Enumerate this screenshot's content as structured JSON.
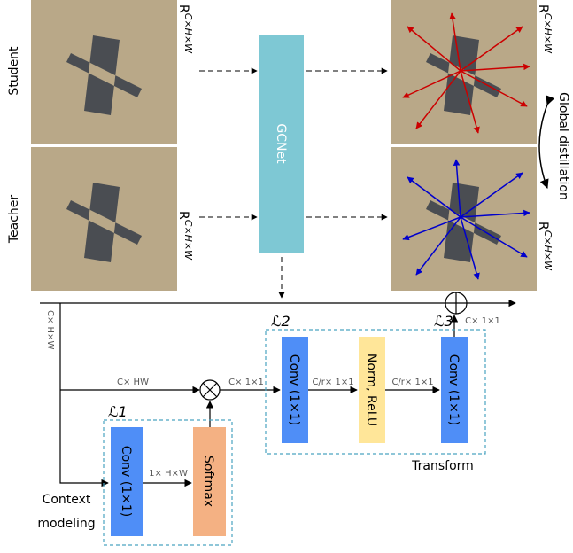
{
  "labels": {
    "student": "Student",
    "teacher": "Teacher",
    "gcnet": "GCNet",
    "global_distillation": "Global distillation",
    "context_modeling": [
      "Context",
      "modeling"
    ],
    "transform": "Transform"
  },
  "features": [
    {
      "base": "R",
      "sup": "C×H×W"
    },
    {
      "base": "R",
      "sup": "C×H×W"
    },
    {
      "base": "R",
      "sup": "C×H×W"
    },
    {
      "base": "R",
      "sup": "C×H×W"
    }
  ],
  "shapes": {
    "input": "C× H×W",
    "reshape": "C× HW",
    "pooled": "C× 1×1",
    "bottleneck_1": "C/r× 1×1",
    "bottleneck_2": "C/r× 1×1",
    "attention": "1× H×W",
    "output": "C× 1×1"
  },
  "blocks": {
    "l1": "ℒ1",
    "l2": "ℒ2",
    "l3": "ℒ3",
    "conv_1": "Conv (1×1)",
    "softmax": "Softmax",
    "conv_2": "Conv (1×1)",
    "norm": "Norm, ReLU",
    "conv_3": "Conv (1×1)"
  }
}
